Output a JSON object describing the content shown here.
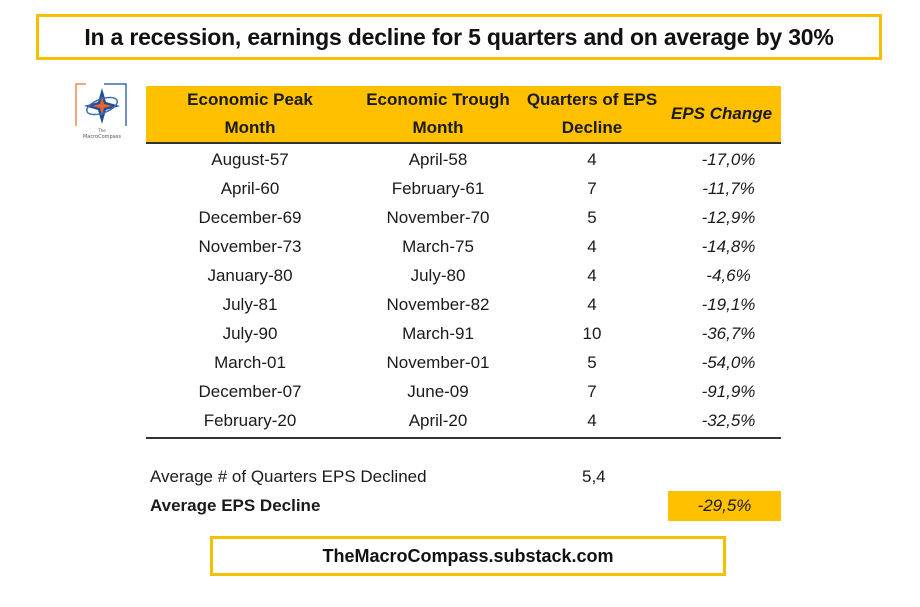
{
  "title": "In a recession, earnings decline for 5 quarters and on average by 30%",
  "logo": {
    "icon": "compass-logo-icon",
    "caption_small": "The",
    "caption": "MacroCompass"
  },
  "table": {
    "headers": [
      [
        "Economic Peak",
        "Month"
      ],
      [
        "Economic Trough",
        "Month"
      ],
      [
        "Quarters of EPS",
        "Decline"
      ],
      [
        "EPS Change"
      ]
    ],
    "rows": [
      {
        "peak": "August-57",
        "trough": "April-58",
        "quarters": "4",
        "eps_change": "-17,0%"
      },
      {
        "peak": "April-60",
        "trough": "February-61",
        "quarters": "7",
        "eps_change": "-11,7%"
      },
      {
        "peak": "December-69",
        "trough": "November-70",
        "quarters": "5",
        "eps_change": "-12,9%"
      },
      {
        "peak": "November-73",
        "trough": "March-75",
        "quarters": "4",
        "eps_change": "-14,8%"
      },
      {
        "peak": "January-80",
        "trough": "July-80",
        "quarters": "4",
        "eps_change": "-4,6%"
      },
      {
        "peak": "July-81",
        "trough": "November-82",
        "quarters": "4",
        "eps_change": "-19,1%"
      },
      {
        "peak": "July-90",
        "trough": "March-91",
        "quarters": "10",
        "eps_change": "-36,7%"
      },
      {
        "peak": "March-01",
        "trough": "November-01",
        "quarters": "5",
        "eps_change": "-54,0%"
      },
      {
        "peak": "December-07",
        "trough": "June-09",
        "quarters": "7",
        "eps_change": "-91,9%"
      },
      {
        "peak": "February-20",
        "trough": "April-20",
        "quarters": "4",
        "eps_change": "-32,5%"
      }
    ]
  },
  "summary": {
    "avg_quarters_label": "Average # of Quarters EPS Declined",
    "avg_quarters_value": "5,4",
    "avg_eps_label": "Average EPS Decline",
    "avg_eps_value": "-29,5%"
  },
  "footer": "TheMacroCompass.substack.com",
  "colors": {
    "accent": "#ffc000",
    "border": "#f5c000"
  }
}
